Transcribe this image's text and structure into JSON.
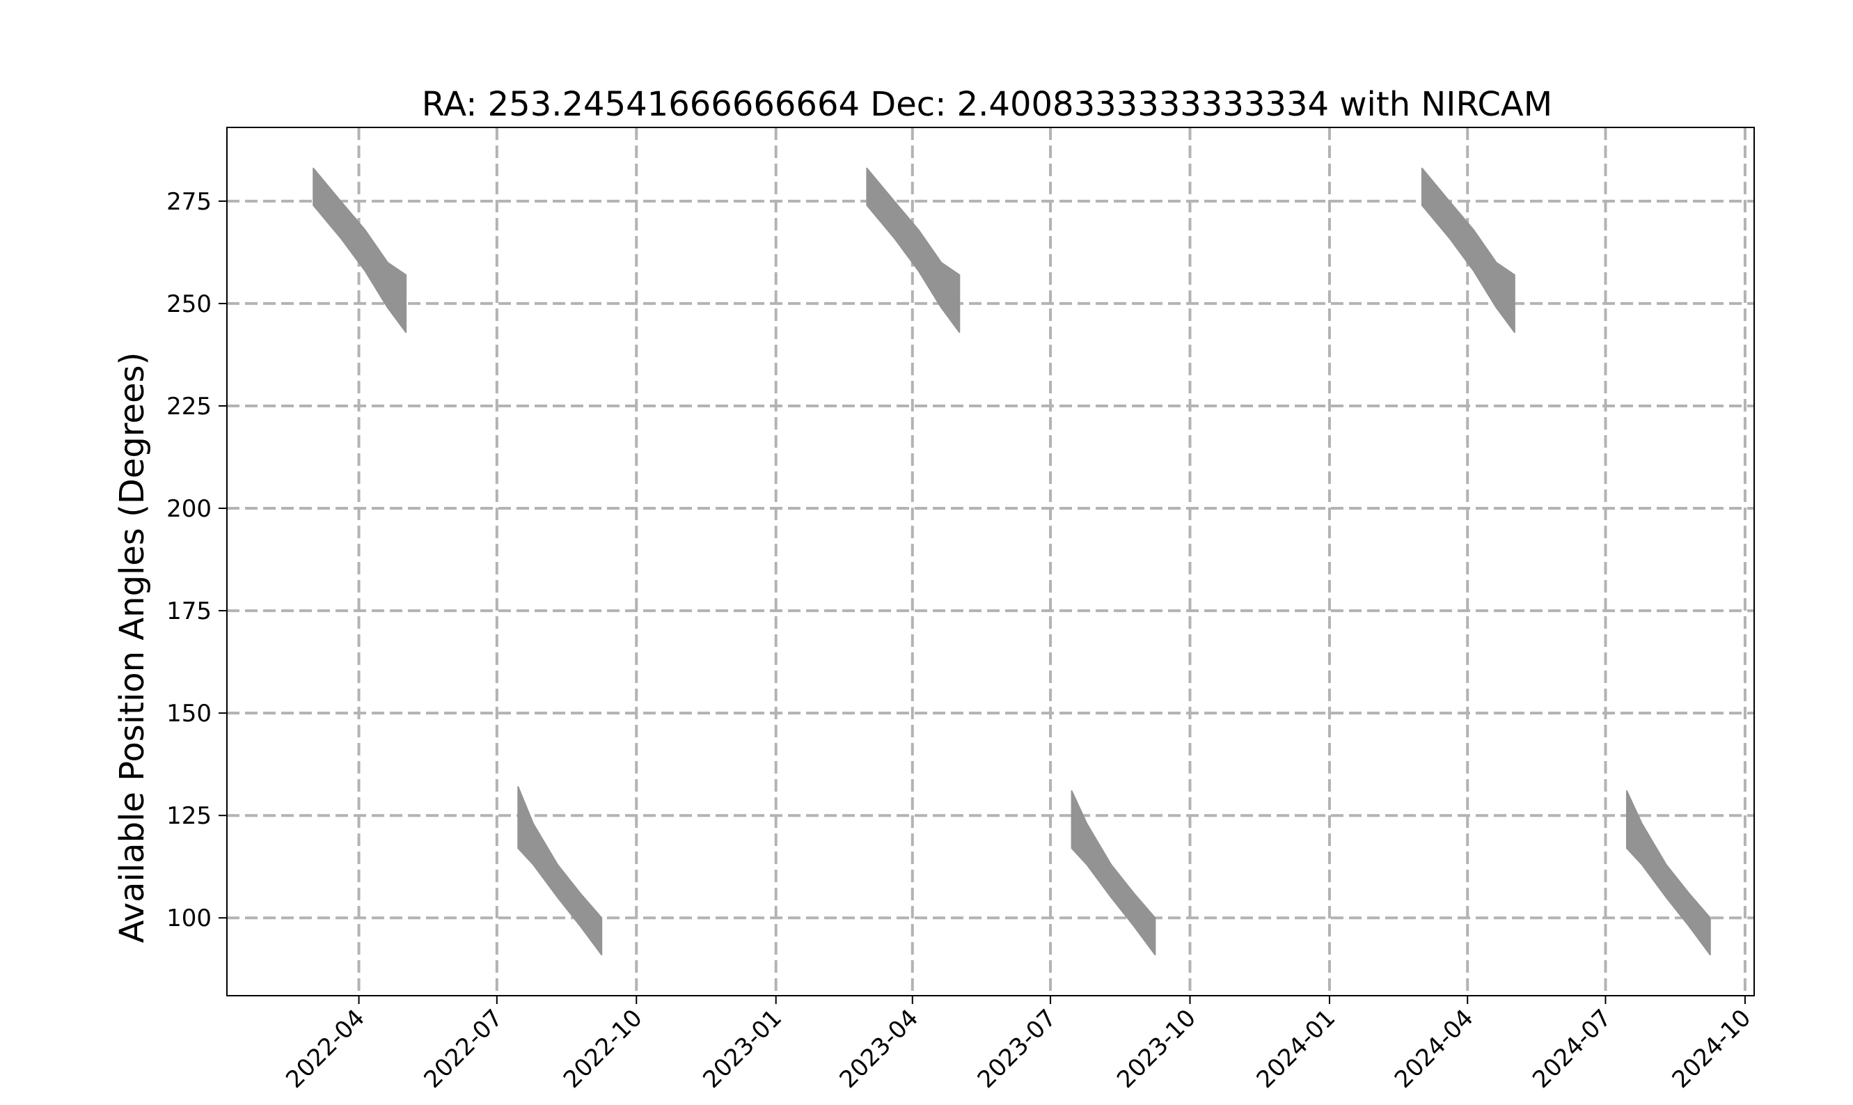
{
  "chart_data": {
    "type": "area",
    "title": "RA: 253.24541666666664 Dec: 2.4008333333333334 with NIRCAM",
    "xlabel": "",
    "ylabel": "Available Position Angles (Degrees)",
    "xlim": [
      "2022-01-04",
      "2024-10-07"
    ],
    "ylim": [
      81,
      293
    ],
    "grid": true,
    "x_ticks": [
      "2022-04",
      "2022-07",
      "2022-10",
      "2023-01",
      "2023-04",
      "2023-07",
      "2023-10",
      "2024-01",
      "2024-04",
      "2024-07",
      "2024-10"
    ],
    "y_ticks": [
      100,
      125,
      150,
      175,
      200,
      225,
      250,
      275
    ],
    "colors": {
      "band": "#939393",
      "grid": "#b3b3b3",
      "axis": "#000000"
    },
    "series": [
      {
        "points": [
          {
            "x": "2022-03-02",
            "upper": 283,
            "lower": 274
          },
          {
            "x": "2022-03-20",
            "upper": 275,
            "lower": 266
          },
          {
            "x": "2022-04-05",
            "upper": 268,
            "lower": 258
          },
          {
            "x": "2022-04-20",
            "upper": 260,
            "lower": 249
          },
          {
            "x": "2022-05-02",
            "upper": 257,
            "lower": 243
          }
        ]
      },
      {
        "points": [
          {
            "x": "2022-07-15",
            "upper": 132,
            "lower": 117
          },
          {
            "x": "2022-07-25",
            "upper": 123,
            "lower": 113
          },
          {
            "x": "2022-08-10",
            "upper": 113,
            "lower": 105
          },
          {
            "x": "2022-08-25",
            "upper": 106,
            "lower": 98
          },
          {
            "x": "2022-09-08",
            "upper": 100,
            "lower": 91
          }
        ]
      },
      {
        "points": [
          {
            "x": "2023-03-02",
            "upper": 283,
            "lower": 274
          },
          {
            "x": "2023-03-20",
            "upper": 275,
            "lower": 266
          },
          {
            "x": "2023-04-05",
            "upper": 268,
            "lower": 258
          },
          {
            "x": "2023-04-20",
            "upper": 260,
            "lower": 249
          },
          {
            "x": "2023-05-02",
            "upper": 257,
            "lower": 243
          }
        ]
      },
      {
        "points": [
          {
            "x": "2023-07-15",
            "upper": 131,
            "lower": 117
          },
          {
            "x": "2023-07-25",
            "upper": 123,
            "lower": 113
          },
          {
            "x": "2023-08-10",
            "upper": 113,
            "lower": 105
          },
          {
            "x": "2023-08-25",
            "upper": 106,
            "lower": 98
          },
          {
            "x": "2023-09-08",
            "upper": 100,
            "lower": 91
          }
        ]
      },
      {
        "points": [
          {
            "x": "2024-03-02",
            "upper": 283,
            "lower": 274
          },
          {
            "x": "2024-03-20",
            "upper": 275,
            "lower": 266
          },
          {
            "x": "2024-04-05",
            "upper": 268,
            "lower": 258
          },
          {
            "x": "2024-04-20",
            "upper": 260,
            "lower": 249
          },
          {
            "x": "2024-05-02",
            "upper": 257,
            "lower": 243
          }
        ]
      },
      {
        "points": [
          {
            "x": "2024-07-15",
            "upper": 131,
            "lower": 117
          },
          {
            "x": "2024-07-25",
            "upper": 123,
            "lower": 113
          },
          {
            "x": "2024-08-10",
            "upper": 113,
            "lower": 105
          },
          {
            "x": "2024-08-25",
            "upper": 106,
            "lower": 98
          },
          {
            "x": "2024-09-08",
            "upper": 100,
            "lower": 91
          }
        ]
      }
    ]
  }
}
